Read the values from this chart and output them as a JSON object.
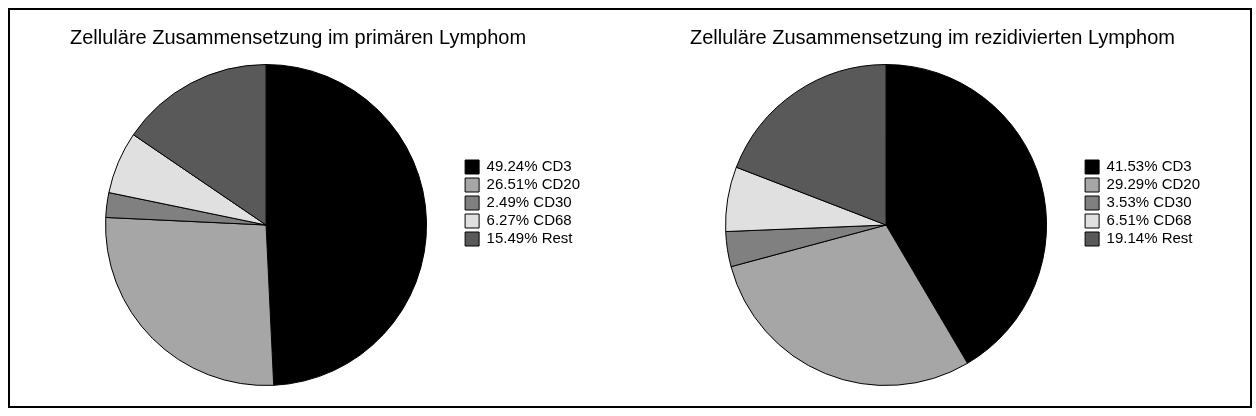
{
  "chart_data": [
    {
      "type": "pie",
      "title": "Zelluläre Zusammensetzung im primären Lymphom",
      "categories": [
        "CD3",
        "CD20",
        "CD30",
        "CD68",
        "Rest"
      ],
      "values": [
        49.24,
        26.51,
        2.49,
        6.27,
        15.49
      ],
      "value_labels": [
        "49.24%",
        "26.51%",
        "2.49%",
        "6.27%",
        "15.49%"
      ],
      "colors": [
        "#000000",
        "#a6a6a6",
        "#808080",
        "#e0e0e0",
        "#595959"
      ],
      "legend": "right"
    },
    {
      "type": "pie",
      "title": "Zelluläre Zusammensetzung im rezidivierten Lymphom",
      "categories": [
        "CD3",
        "CD20",
        "CD30",
        "CD68",
        "Rest"
      ],
      "values": [
        41.53,
        29.29,
        3.53,
        6.51,
        19.14
      ],
      "value_labels": [
        "41.53%",
        "29.29%",
        "3.53%",
        "6.51%",
        "19.14%"
      ],
      "colors": [
        "#000000",
        "#a6a6a6",
        "#808080",
        "#e0e0e0",
        "#595959"
      ],
      "legend": "right"
    }
  ]
}
